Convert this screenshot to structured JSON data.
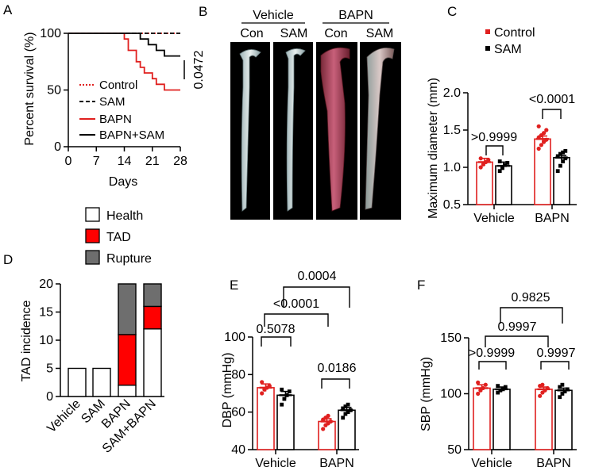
{
  "figure": {
    "panel_labels": [
      "A",
      "B",
      "C",
      "D",
      "E",
      "F"
    ]
  },
  "photo_panel": {
    "group_headers": [
      "Vehicle",
      "BAPN"
    ],
    "column_labels": [
      "Con",
      "SAM",
      "Con",
      "SAM"
    ]
  },
  "colors": {
    "control": "#e0201f",
    "sam": "#000000",
    "tad": "#ff0000",
    "rupture": "#6e6e6e",
    "health": "#ffffff"
  },
  "chart_data": [
    {
      "id": "A",
      "type": "line",
      "subtype": "kaplan-meier",
      "xlabel": "Days",
      "ylabel": "Percent survival (%)",
      "xlim": [
        0,
        28
      ],
      "ylim": [
        0,
        100
      ],
      "xticks": [
        0,
        7,
        14,
        21,
        28
      ],
      "yticks": [
        0,
        50,
        100
      ],
      "series": [
        {
          "name": "Control",
          "style": "dotted",
          "color": "#e0201f",
          "points": [
            [
              0,
              100
            ],
            [
              28,
              100
            ]
          ]
        },
        {
          "name": "SAM",
          "style": "dashed",
          "color": "#000000",
          "points": [
            [
              0,
              100
            ],
            [
              28,
              100
            ]
          ]
        },
        {
          "name": "BAPN",
          "style": "solid",
          "color": "#e0201f",
          "points": [
            [
              0,
              100
            ],
            [
              14,
              100
            ],
            [
              14,
              95
            ],
            [
              15,
              95
            ],
            [
              15,
              85
            ],
            [
              17,
              85
            ],
            [
              17,
              75
            ],
            [
              18,
              75
            ],
            [
              18,
              70
            ],
            [
              19,
              70
            ],
            [
              19,
              65
            ],
            [
              21,
              65
            ],
            [
              21,
              60
            ],
            [
              22,
              60
            ],
            [
              22,
              55
            ],
            [
              24,
              55
            ],
            [
              24,
              50
            ],
            [
              25,
              50
            ],
            [
              25,
              50
            ],
            [
              28,
              50
            ]
          ]
        },
        {
          "name": "BAPN+SAM",
          "style": "solid",
          "color": "#000000",
          "points": [
            [
              0,
              100
            ],
            [
              18,
              100
            ],
            [
              18,
              95
            ],
            [
              20,
              95
            ],
            [
              20,
              90
            ],
            [
              22,
              90
            ],
            [
              22,
              85
            ],
            [
              24,
              85
            ],
            [
              24,
              80
            ],
            [
              28,
              80
            ]
          ]
        }
      ],
      "annotation": "0.0472"
    },
    {
      "id": "C",
      "type": "bar",
      "subtype": "grouped-with-points",
      "ylabel": "Maximum diameter (mm)",
      "ylim": [
        0.5,
        2.0
      ],
      "yticks": [
        0.5,
        1.0,
        1.5,
        2.0
      ],
      "categories": [
        "Vehicle",
        "BAPN"
      ],
      "legend": [
        "Control",
        "SAM"
      ],
      "series": [
        {
          "name": "Control",
          "values": [
            1.07,
            1.38
          ],
          "sem": [
            0.05,
            0.04
          ]
        },
        {
          "name": "SAM",
          "values": [
            1.02,
            1.13
          ],
          "sem": [
            0.05,
            0.03
          ]
        }
      ],
      "points": {
        "Vehicle": {
          "Control": [
            1.0,
            1.04,
            1.07,
            1.1,
            1.12
          ],
          "SAM": [
            0.95,
            0.99,
            1.03,
            1.06,
            1.08
          ]
        },
        "BAPN": {
          "Control": [
            1.25,
            1.3,
            1.34,
            1.37,
            1.4,
            1.43,
            1.46,
            1.5,
            1.55
          ],
          "SAM": [
            0.95,
            1.02,
            1.08,
            1.12,
            1.15,
            1.18,
            1.2,
            1.22
          ]
        }
      },
      "comparisons": [
        "0.9999",
        "0.0001"
      ],
      "comparison_prefixes": [
        ">",
        "<"
      ]
    },
    {
      "id": "D",
      "type": "bar",
      "subtype": "stacked",
      "ylabel": "TAD incidence",
      "ylim": [
        0,
        20
      ],
      "yticks": [
        0,
        5,
        10,
        15,
        20
      ],
      "categories": [
        "Vehicle",
        "SAM",
        "BAPN",
        "SAM+BAPN"
      ],
      "legend": [
        "Health",
        "TAD",
        "Rupture"
      ],
      "series": [
        {
          "name": "Health",
          "values": [
            5,
            5,
            2,
            12
          ]
        },
        {
          "name": "TAD",
          "values": [
            0,
            0,
            9,
            4
          ]
        },
        {
          "name": "Rupture",
          "values": [
            0,
            0,
            9,
            4
          ]
        }
      ]
    },
    {
      "id": "E",
      "type": "bar",
      "subtype": "grouped-with-points",
      "ylabel": "DBP (mmHg)",
      "ylim": [
        40,
        100
      ],
      "yticks": [
        40,
        60,
        80,
        100
      ],
      "categories": [
        "Vehicle",
        "BAPN"
      ],
      "series": [
        {
          "name": "Control",
          "values": [
            73,
            55
          ],
          "sem": [
            2,
            1.5
          ]
        },
        {
          "name": "SAM",
          "values": [
            69,
            61
          ],
          "sem": [
            2,
            1.5
          ]
        }
      ],
      "points": {
        "Vehicle": {
          "Control": [
            70,
            72,
            73,
            74,
            76
          ],
          "SAM": [
            64,
            67,
            69,
            71,
            72
          ]
        },
        "BAPN": {
          "Control": [
            51,
            53,
            54,
            55,
            56,
            57,
            58
          ],
          "SAM": [
            57,
            59,
            60,
            61,
            62,
            63,
            64
          ]
        }
      },
      "comparisons": [
        "0.5078",
        "0.0186",
        "<0.0001",
        "0.0004"
      ]
    },
    {
      "id": "F",
      "type": "bar",
      "subtype": "grouped-with-points",
      "ylabel": "SBP (mmHg)",
      "ylim": [
        50,
        150
      ],
      "yticks": [
        50,
        100,
        150
      ],
      "categories": [
        "Vehicle",
        "BAPN"
      ],
      "series": [
        {
          "name": "Control",
          "values": [
            105,
            104
          ],
          "sem": [
            3,
            2
          ]
        },
        {
          "name": "SAM",
          "values": [
            104,
            103
          ],
          "sem": [
            2,
            2
          ]
        }
      ],
      "points": {
        "Vehicle": {
          "Control": [
            100,
            103,
            105,
            108,
            110
          ],
          "SAM": [
            101,
            103,
            104,
            106,
            107
          ]
        },
        "BAPN": {
          "Control": [
            98,
            101,
            103,
            105,
            107,
            108
          ],
          "SAM": [
            97,
            100,
            102,
            104,
            106,
            108
          ]
        }
      },
      "comparisons": [
        ">0.9999",
        "0.9997",
        "0.9997",
        "0.9825"
      ]
    }
  ]
}
